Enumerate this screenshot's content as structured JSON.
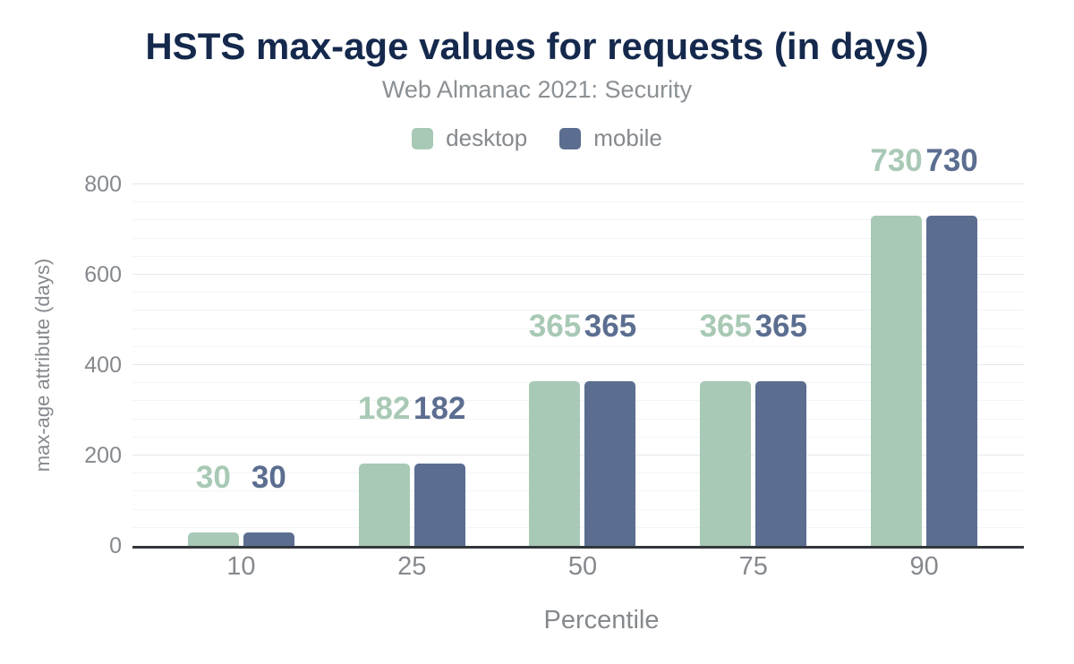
{
  "chart_data": {
    "type": "bar",
    "title": "HSTS max-age values for requests (in days)",
    "subtitle": "Web Almanac 2021: Security",
    "xlabel": "Percentile",
    "ylabel": "max-age attribute (days)",
    "categories": [
      "10",
      "25",
      "50",
      "75",
      "90"
    ],
    "series": [
      {
        "name": "desktop",
        "color": "#a8c9b5",
        "values": [
          30,
          182,
          365,
          365,
          730
        ]
      },
      {
        "name": "mobile",
        "color": "#5b6e90",
        "values": [
          30,
          182,
          365,
          365,
          730
        ]
      }
    ],
    "ylim": [
      0,
      800
    ],
    "yticks": [
      0,
      200,
      400,
      600,
      800
    ],
    "minor_tick_step": 40,
    "grid": true,
    "legend_position": "top",
    "data_labels": true
  },
  "colors": {
    "background": "#ffffff",
    "title": "#15294d",
    "subtitle": "#8b9094",
    "axis_text": "#85898d",
    "axis_line": "#33373c",
    "grid_major": "#e6e7e9",
    "grid_minor": "#f3f4f6"
  }
}
